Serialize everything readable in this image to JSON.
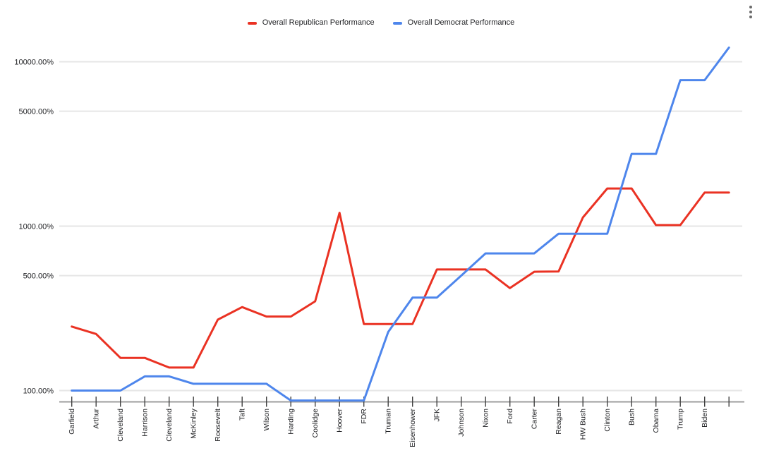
{
  "legend": {
    "items": [
      {
        "label": "Overall Republican Performance",
        "color": "#ea3223"
      },
      {
        "label": "Overall Democrat Performance",
        "color": "#4e86ec"
      }
    ]
  },
  "chart_data": {
    "type": "line",
    "title": "",
    "y_scale": "log",
    "y_axis_format": "percent",
    "grid": true,
    "legend_position": "top",
    "ylim": [
      80,
      13000
    ],
    "categories": [
      "Garfield",
      "Arthur",
      "Cleveland",
      "Harrison",
      "Cleveland",
      "McKinley",
      "Roosevelt",
      "Taft",
      "Wilson",
      "Harding",
      "Coolidge",
      "Hoover",
      "FDR",
      "Truman",
      "Eisenhower",
      "JFK",
      "Johnson",
      "Nixon",
      "Ford",
      "Carter",
      "Reagan",
      "HW Bush",
      "Clinton",
      "Bush",
      "Obama",
      "Trump",
      "Biden",
      ""
    ],
    "y_ticks": [
      {
        "label": "10000.00%",
        "value": 10000
      },
      {
        "label": "5000.00%",
        "value": 5000
      },
      {
        "label": "1000.00%",
        "value": 1000
      },
      {
        "label": "500.00%",
        "value": 500
      },
      {
        "label": "100.00%",
        "value": 100
      }
    ],
    "series": [
      {
        "name": "Overall Republican Performance",
        "color": "#ea3223",
        "values": [
          245,
          221,
          158,
          158,
          138,
          138,
          270,
          322,
          282,
          282,
          349,
          1205,
          254,
          254,
          254,
          545,
          545,
          545,
          420,
          528,
          530,
          1130,
          1695,
          1695,
          1015,
          1015,
          1600,
          1600
        ]
      },
      {
        "name": "Overall Democrat Performance",
        "color": "#4e86ec",
        "values": [
          100,
          100,
          100,
          122,
          122,
          110,
          110,
          110,
          110,
          87,
          87,
          87,
          87,
          227,
          368,
          368,
          500,
          683,
          683,
          683,
          900,
          900,
          900,
          2750,
          2750,
          7730,
          7730,
          12200
        ]
      }
    ]
  }
}
